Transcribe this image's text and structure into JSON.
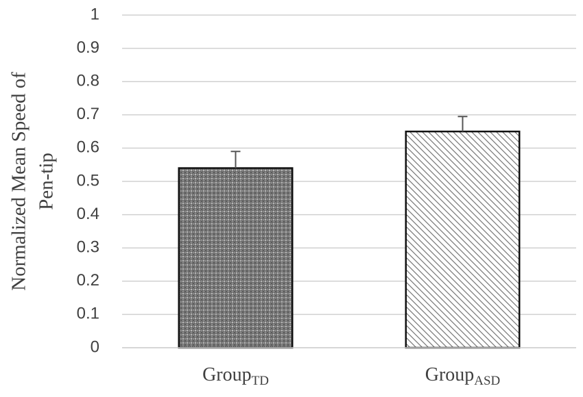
{
  "chart_data": {
    "type": "bar",
    "ylabel": [
      "Normalized Mean Speed of",
      "Pen-tip"
    ],
    "categories": [
      "Group",
      "Group"
    ],
    "category_subscripts": [
      "TD",
      "ASD"
    ],
    "values": [
      0.54,
      0.65
    ],
    "errors": [
      0.05,
      0.045
    ],
    "patterns": [
      "dots",
      "diagonal"
    ],
    "ylim": [
      0,
      1
    ],
    "yticks": [
      0,
      0.1,
      0.2,
      0.3,
      0.4,
      0.5,
      0.6,
      0.7,
      0.8,
      0.9,
      1
    ],
    "grid": true
  }
}
